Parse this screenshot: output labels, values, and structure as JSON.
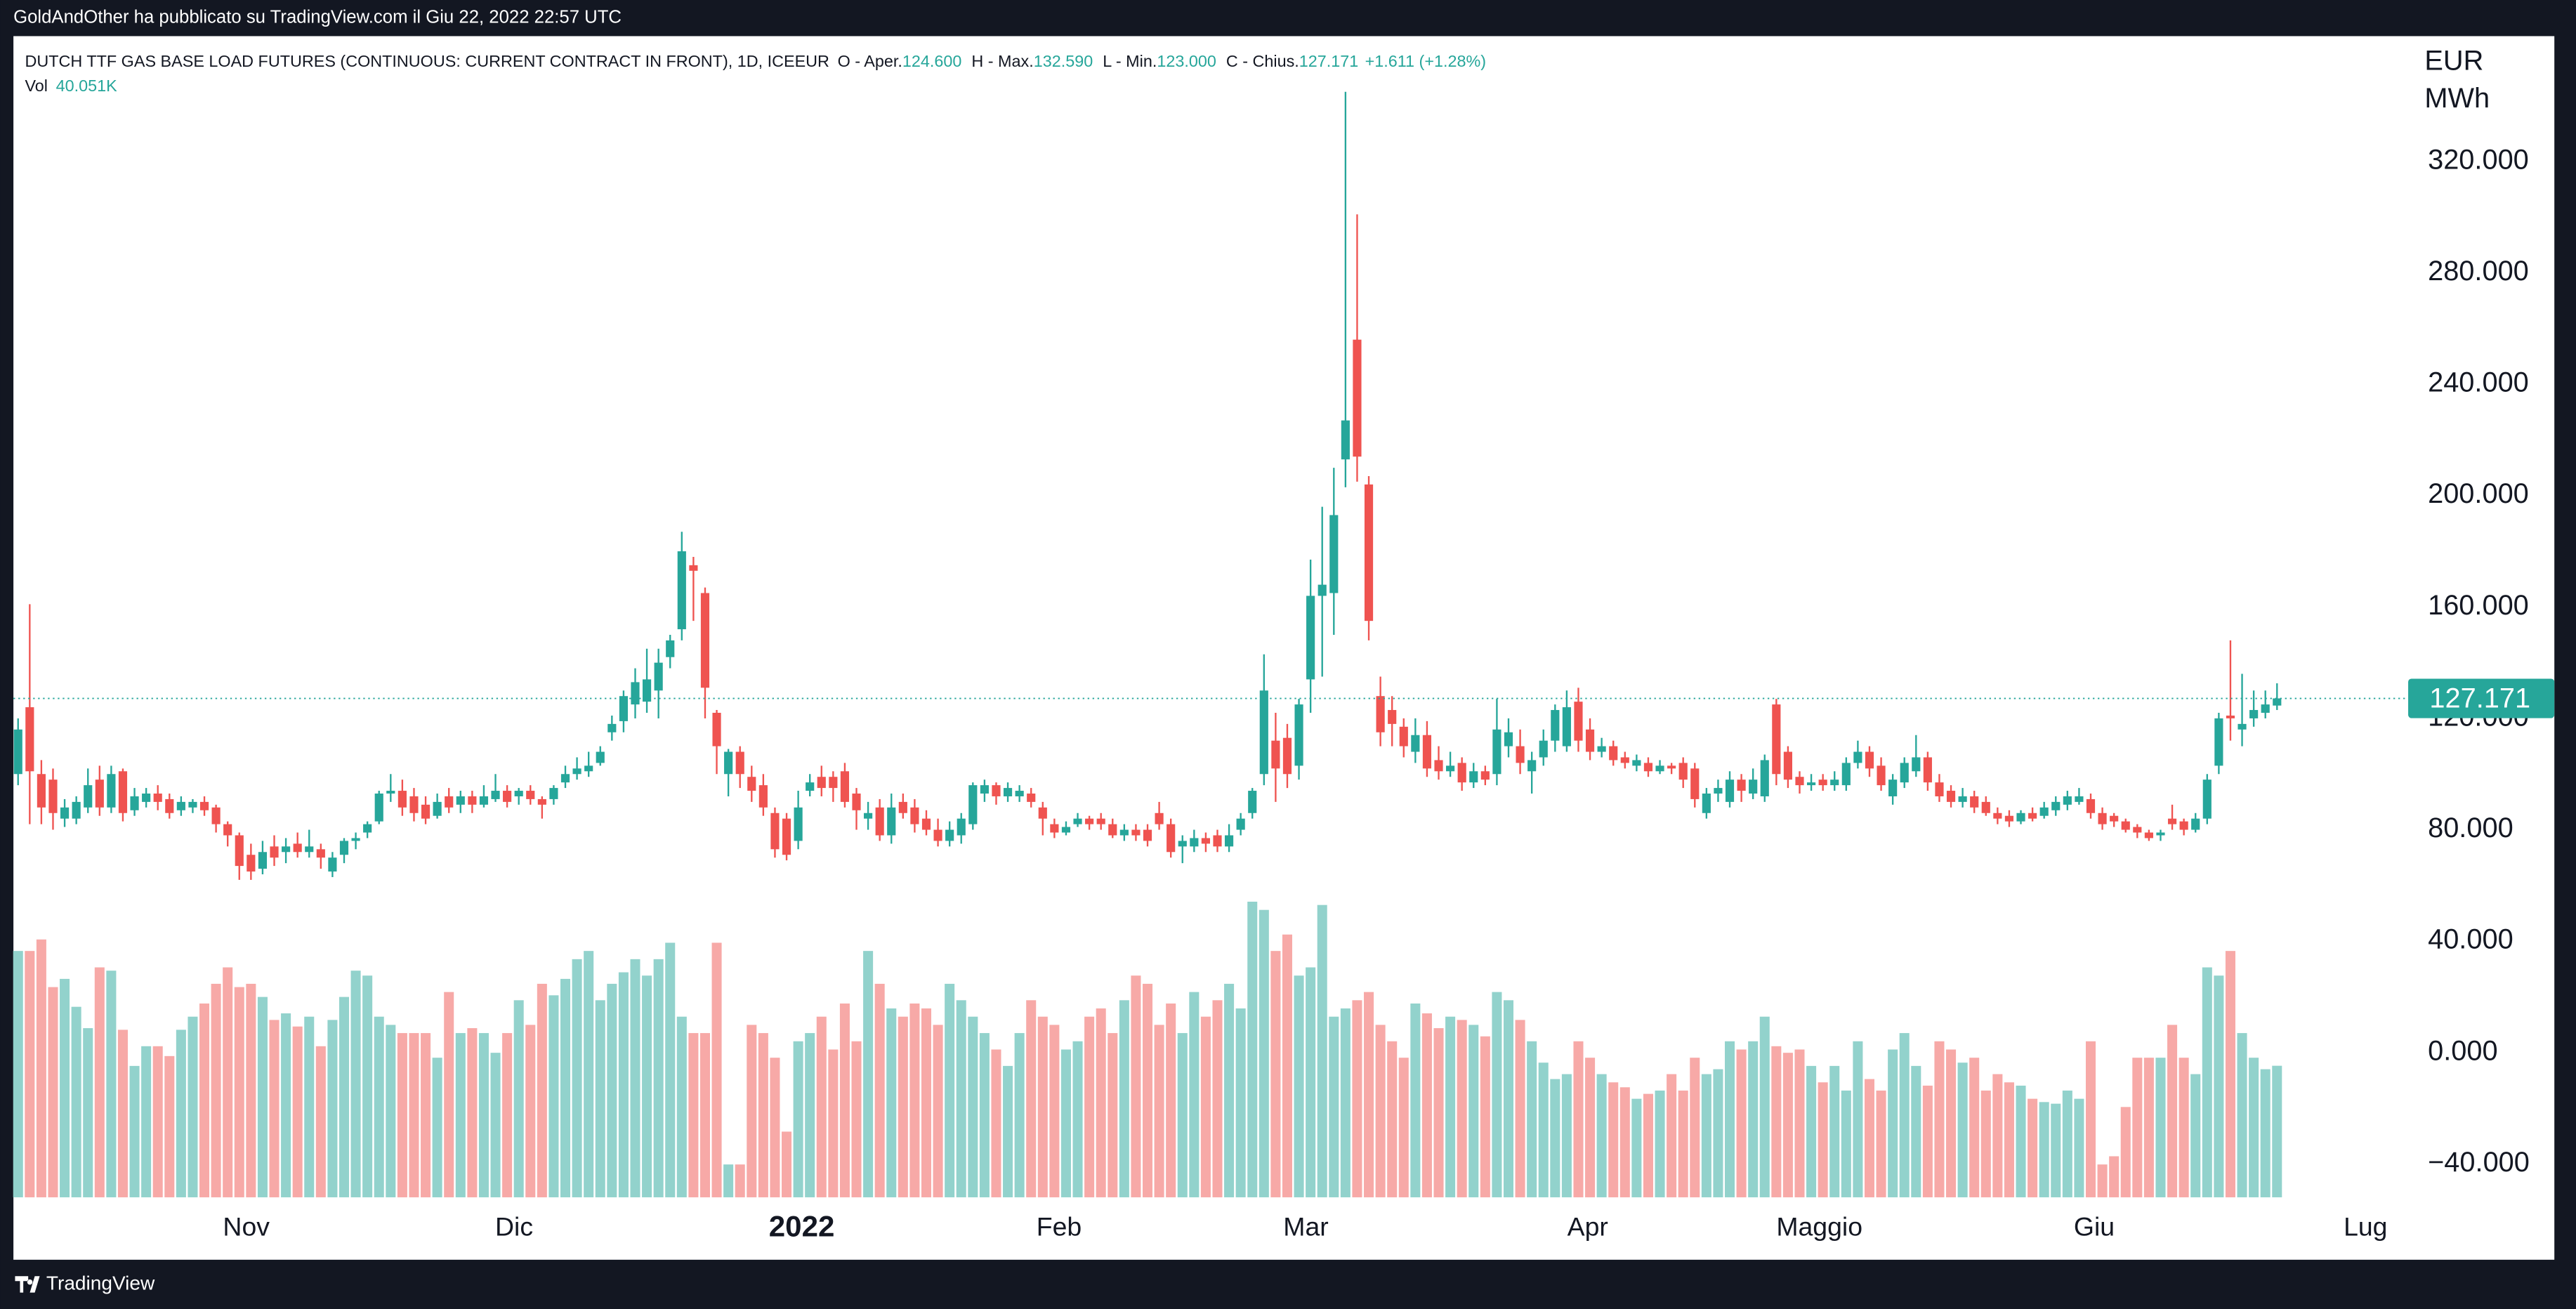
{
  "header": {
    "publisher": "GoldAndOther ha pubblicato su TradingView.com il Giu 22, 2022 22:57 UTC"
  },
  "footer": {
    "brand": "TradingView"
  },
  "chart_data": {
    "type": "candlestick",
    "legend": {
      "symbol": "DUTCH TTF GAS BASE LOAD FUTURES (CONTINUOUS: CURRENT CONTRACT IN FRONT), 1D, ICEEUR",
      "items": [
        {
          "label": "O - Aper.",
          "value": "124.600"
        },
        {
          "label": "H - Max.",
          "value": "132.590"
        },
        {
          "label": "L - Min.",
          "value": "123.000"
        },
        {
          "label": "C - Chius.",
          "value": "127.171"
        }
      ],
      "change": "+1.611 (+1.28%)"
    },
    "volume_legend": {
      "label": "Vol",
      "value": "40.051K"
    },
    "y_unit": [
      "EUR",
      "MWh"
    ],
    "last_price_label": "127.171",
    "up_color": "#26a69a",
    "down_color": "#ef5350",
    "volume_up_color": "#92d2cc",
    "volume_down_color": "#f7a9a7",
    "xlim": [
      -0.4,
      204.7
    ],
    "xticks": [
      {
        "value": 19.6,
        "label": "Nov"
      },
      {
        "value": 42.6,
        "label": "Dic"
      },
      {
        "value": 67.3,
        "label": "2022"
      },
      {
        "value": 89.4,
        "label": "Feb"
      },
      {
        "value": 110.6,
        "label": "Mar"
      },
      {
        "value": 134.8,
        "label": "Apr"
      },
      {
        "value": 154.7,
        "label": "Maggio"
      },
      {
        "value": 178.3,
        "label": "Giu"
      },
      {
        "value": 201.6,
        "label": "Lug"
      }
    ],
    "ylim": [
      -52,
      365
    ],
    "yticks": [
      {
        "value": -40,
        "label": "−40.000"
      },
      {
        "value": 0,
        "label": "0.000"
      },
      {
        "value": 40,
        "label": "40.000"
      },
      {
        "value": 80,
        "label": "80.000"
      },
      {
        "value": 120,
        "label": "120.000"
      },
      {
        "value": 160,
        "label": "160.000"
      },
      {
        "value": 200,
        "label": "200.000"
      },
      {
        "value": 240,
        "label": "240.000"
      },
      {
        "value": 280,
        "label": "280.000"
      },
      {
        "value": 320,
        "label": "320.000"
      }
    ],
    "vlim": [
      0,
      353500
    ],
    "ohlc": [
      [
        100,
        120,
        96,
        116
      ],
      [
        124,
        161,
        82,
        101
      ],
      [
        100,
        105,
        82,
        88
      ],
      [
        98,
        102,
        80,
        86
      ],
      [
        84,
        91,
        81,
        88
      ],
      [
        84,
        92,
        82,
        90
      ],
      [
        88,
        102,
        86,
        96
      ],
      [
        98,
        103,
        85,
        88
      ],
      [
        88,
        103,
        86,
        100
      ],
      [
        101,
        102,
        83,
        86
      ],
      [
        87,
        95,
        85,
        92
      ],
      [
        90,
        95,
        88,
        93
      ],
      [
        93,
        96,
        87,
        90
      ],
      [
        91,
        93,
        84,
        86
      ],
      [
        87,
        92,
        85,
        90
      ],
      [
        88,
        91,
        86,
        90
      ],
      [
        90,
        92,
        85,
        87
      ],
      [
        88,
        89,
        79,
        82
      ],
      [
        82,
        83,
        74,
        78
      ],
      [
        78,
        79,
        62,
        67
      ],
      [
        71,
        75,
        62,
        65
      ],
      [
        66,
        76,
        64,
        72
      ],
      [
        74,
        78,
        67,
        70
      ],
      [
        72,
        77,
        68,
        74
      ],
      [
        75,
        79,
        70,
        72
      ],
      [
        72,
        80,
        70,
        74
      ],
      [
        73,
        75,
        66,
        70
      ],
      [
        65,
        72,
        63,
        70
      ],
      [
        71,
        77,
        68,
        76
      ],
      [
        76,
        79,
        73,
        77
      ],
      [
        79,
        83,
        77,
        82
      ],
      [
        83,
        94,
        82,
        93
      ],
      [
        93,
        100,
        90,
        94
      ],
      [
        94,
        98,
        85,
        88
      ],
      [
        92,
        95,
        83,
        86
      ],
      [
        89,
        92,
        82,
        84
      ],
      [
        85,
        93,
        84,
        90
      ],
      [
        92,
        95,
        86,
        88
      ],
      [
        89,
        94,
        86,
        92
      ],
      [
        92,
        94,
        86,
        89
      ],
      [
        89,
        96,
        88,
        92
      ],
      [
        91,
        100,
        90,
        94
      ],
      [
        94,
        96,
        88,
        90
      ],
      [
        92,
        95,
        89,
        94
      ],
      [
        94,
        96,
        89,
        91
      ],
      [
        91,
        92,
        84,
        89
      ],
      [
        91,
        96,
        89,
        95
      ],
      [
        97,
        103,
        95,
        100
      ],
      [
        100,
        106,
        98,
        102
      ],
      [
        101,
        108,
        99,
        103
      ],
      [
        104,
        110,
        103,
        108
      ],
      [
        115,
        121,
        112,
        118
      ],
      [
        119,
        130,
        115,
        128
      ],
      [
        125,
        138,
        120,
        133
      ],
      [
        126,
        145,
        122,
        134
      ],
      [
        130,
        145,
        120,
        140
      ],
      [
        142,
        150,
        138,
        148
      ],
      [
        152,
        187,
        148,
        180
      ],
      [
        175,
        178,
        155,
        173
      ],
      [
        165,
        167,
        120,
        131
      ],
      [
        122,
        123,
        100,
        110
      ],
      [
        100,
        109,
        92,
        108
      ],
      [
        108,
        110,
        95,
        100
      ],
      [
        99,
        103,
        90,
        94
      ],
      [
        96,
        100,
        85,
        88
      ],
      [
        86,
        88,
        70,
        73
      ],
      [
        84,
        86,
        69,
        71
      ],
      [
        76,
        94,
        73,
        88
      ],
      [
        94,
        100,
        92,
        97
      ],
      [
        99,
        103,
        92,
        95
      ],
      [
        99,
        101,
        90,
        95
      ],
      [
        101,
        104,
        88,
        90
      ],
      [
        93,
        95,
        80,
        87
      ],
      [
        84,
        90,
        80,
        86
      ],
      [
        88,
        91,
        76,
        78
      ],
      [
        78,
        93,
        75,
        88
      ],
      [
        90,
        93,
        84,
        86
      ],
      [
        88,
        91,
        79,
        82
      ],
      [
        84,
        87,
        78,
        80
      ],
      [
        80,
        84,
        74,
        76
      ],
      [
        76,
        83,
        74,
        80
      ],
      [
        78,
        86,
        75,
        84
      ],
      [
        82,
        97,
        80,
        96
      ],
      [
        93,
        98,
        90,
        96
      ],
      [
        96,
        97,
        89,
        92
      ],
      [
        92,
        97,
        90,
        95
      ],
      [
        92,
        96,
        90,
        94
      ],
      [
        93,
        95,
        88,
        90
      ],
      [
        88,
        90,
        78,
        84
      ],
      [
        82,
        84,
        77,
        79
      ],
      [
        79,
        83,
        78,
        81
      ],
      [
        82,
        86,
        81,
        84
      ],
      [
        84,
        85,
        80,
        82
      ],
      [
        84,
        86,
        80,
        82
      ],
      [
        82,
        84,
        77,
        78
      ],
      [
        78,
        82,
        76,
        80
      ],
      [
        80,
        82,
        76,
        78
      ],
      [
        80,
        82,
        74,
        76
      ],
      [
        86,
        90,
        80,
        82
      ],
      [
        82,
        84,
        70,
        72
      ],
      [
        74,
        78,
        68,
        76
      ],
      [
        74,
        80,
        72,
        77
      ],
      [
        77,
        79,
        72,
        75
      ],
      [
        78,
        80,
        72,
        74
      ],
      [
        74,
        82,
        72,
        78
      ],
      [
        80,
        86,
        78,
        84
      ],
      [
        86,
        95,
        84,
        94
      ],
      [
        100,
        143,
        96,
        130
      ],
      [
        112,
        122,
        90,
        102
      ],
      [
        113,
        118,
        95,
        100
      ],
      [
        103,
        127,
        98,
        125
      ],
      [
        134,
        177,
        122,
        164
      ],
      [
        164,
        196,
        135,
        168
      ],
      [
        165,
        210,
        150,
        193
      ],
      [
        213,
        345,
        203,
        227
      ],
      [
        256,
        301,
        205,
        214
      ],
      [
        204,
        207,
        148,
        155
      ],
      [
        128,
        135,
        110,
        115
      ],
      [
        123,
        128,
        110,
        118
      ],
      [
        117,
        120,
        106,
        110
      ],
      [
        108,
        120,
        104,
        114
      ],
      [
        114,
        119,
        99,
        102
      ],
      [
        105,
        110,
        98,
        101
      ],
      [
        101,
        108,
        99,
        103
      ],
      [
        104,
        106,
        94,
        97
      ],
      [
        97,
        104,
        95,
        101
      ],
      [
        101,
        103,
        96,
        98
      ],
      [
        100,
        127,
        96,
        116
      ],
      [
        110,
        120,
        106,
        115
      ],
      [
        110,
        116,
        100,
        104
      ],
      [
        101,
        108,
        93,
        105
      ],
      [
        106,
        116,
        103,
        112
      ],
      [
        112,
        125,
        108,
        123
      ],
      [
        110,
        130,
        108,
        124
      ],
      [
        126,
        131,
        108,
        112
      ],
      [
        116,
        120,
        105,
        108
      ],
      [
        108,
        113,
        106,
        110
      ],
      [
        110,
        112,
        103,
        105
      ],
      [
        106,
        108,
        102,
        104
      ],
      [
        103,
        107,
        101,
        105
      ],
      [
        104,
        106,
        99,
        101
      ],
      [
        101,
        105,
        100,
        103
      ],
      [
        103,
        104,
        100,
        102
      ],
      [
        104,
        106,
        95,
        98
      ],
      [
        102,
        104,
        88,
        91
      ],
      [
        86,
        95,
        84,
        93
      ],
      [
        93,
        98,
        90,
        95
      ],
      [
        90,
        101,
        88,
        98
      ],
      [
        98,
        100,
        90,
        94
      ],
      [
        93,
        102,
        91,
        98
      ],
      [
        92,
        107,
        90,
        105
      ],
      [
        125,
        127,
        96,
        100
      ],
      [
        108,
        110,
        95,
        98
      ],
      [
        99,
        101,
        93,
        96
      ],
      [
        96,
        100,
        94,
        97
      ],
      [
        98,
        100,
        94,
        96
      ],
      [
        96,
        101,
        94,
        98
      ],
      [
        96,
        106,
        94,
        104
      ],
      [
        104,
        112,
        102,
        108
      ],
      [
        108,
        110,
        99,
        102
      ],
      [
        103,
        106,
        94,
        96
      ],
      [
        92,
        100,
        89,
        98
      ],
      [
        97,
        106,
        95,
        104
      ],
      [
        101,
        114,
        99,
        106
      ],
      [
        106,
        108,
        94,
        97
      ],
      [
        97,
        100,
        90,
        92
      ],
      [
        94,
        96,
        88,
        90
      ],
      [
        90,
        95,
        88,
        92
      ],
      [
        92,
        94,
        86,
        88
      ],
      [
        90,
        92,
        85,
        86
      ],
      [
        86,
        88,
        82,
        84
      ],
      [
        85,
        87,
        81,
        83
      ],
      [
        83,
        87,
        82,
        86
      ],
      [
        86,
        88,
        83,
        84
      ],
      [
        85,
        90,
        84,
        88
      ],
      [
        87,
        92,
        85,
        90
      ],
      [
        89,
        94,
        87,
        92
      ],
      [
        90,
        95,
        89,
        92
      ],
      [
        91,
        93,
        84,
        86
      ],
      [
        86,
        88,
        80,
        82
      ],
      [
        85,
        86,
        81,
        83
      ],
      [
        83,
        84,
        79,
        80
      ],
      [
        81,
        82,
        77,
        79
      ],
      [
        79,
        80,
        76,
        77
      ],
      [
        78,
        80,
        76,
        79
      ],
      [
        84,
        89,
        80,
        82
      ],
      [
        83,
        84,
        78,
        80
      ],
      [
        80,
        86,
        79,
        84
      ],
      [
        84,
        100,
        82,
        98
      ],
      [
        103,
        122,
        100,
        120
      ],
      [
        121,
        148,
        112,
        120
      ],
      [
        116,
        136,
        110,
        118
      ],
      [
        120,
        130,
        117,
        123
      ],
      [
        122,
        130,
        120,
        125
      ],
      [
        124.6,
        132.59,
        123,
        127.171
      ]
    ],
    "volume": [
      75000,
      75000,
      78500,
      64000,
      66500,
      58000,
      51500,
      70000,
      69000,
      51000,
      40000,
      46000,
      46000,
      43000,
      51000,
      55000,
      59000,
      65000,
      70000,
      64000,
      65000,
      61000,
      54000,
      56000,
      52000,
      55000,
      46000,
      54000,
      61000,
      69000,
      67500,
      55000,
      52500,
      50000,
      50000,
      50000,
      42500,
      62500,
      50000,
      51500,
      50000,
      44000,
      50000,
      60000,
      52500,
      65000,
      61500,
      66500,
      72500,
      75000,
      60000,
      65000,
      68500,
      72500,
      67500,
      72500,
      77500,
      55000,
      50000,
      50000,
      77500,
      10000,
      10000,
      52500,
      50000,
      42500,
      20000,
      47500,
      50000,
      55000,
      45000,
      59000,
      47500,
      75000,
      65000,
      57500,
      55000,
      59000,
      57500,
      52500,
      65000,
      60000,
      55000,
      50000,
      45000,
      40000,
      50000,
      60000,
      55000,
      52500,
      45000,
      47500,
      55000,
      57500,
      50000,
      60000,
      67500,
      65000,
      52500,
      59000,
      50000,
      62500,
      55000,
      60000,
      65000,
      57500,
      90000,
      87500,
      75000,
      80000,
      67500,
      70000,
      89000,
      55000,
      57500,
      60000,
      62500,
      52500,
      47500,
      42500,
      59000,
      56000,
      51500,
      55000,
      54000,
      52500,
      49000,
      62500,
      60000,
      54000,
      47500,
      41000,
      36000,
      37500,
      47500,
      42500,
      37500,
      35000,
      33500,
      30000,
      31500,
      32500,
      37500,
      32500,
      42500,
      37500,
      39000,
      47500,
      45000,
      47500,
      55000,
      46000,
      44000,
      45000,
      40000,
      35000,
      40000,
      32500,
      47500,
      36000,
      32500,
      45000,
      50000,
      40000,
      34000,
      47500,
      45000,
      41000,
      42500,
      32500,
      37500,
      35000,
      34000,
      30000,
      29000,
      28500,
      32500,
      30000,
      47500,
      10000,
      12500,
      27500,
      42500,
      42500,
      42500,
      52500,
      42500,
      37500,
      70000,
      67500,
      75000,
      50000,
      42500,
      39000,
      40051
    ]
  }
}
